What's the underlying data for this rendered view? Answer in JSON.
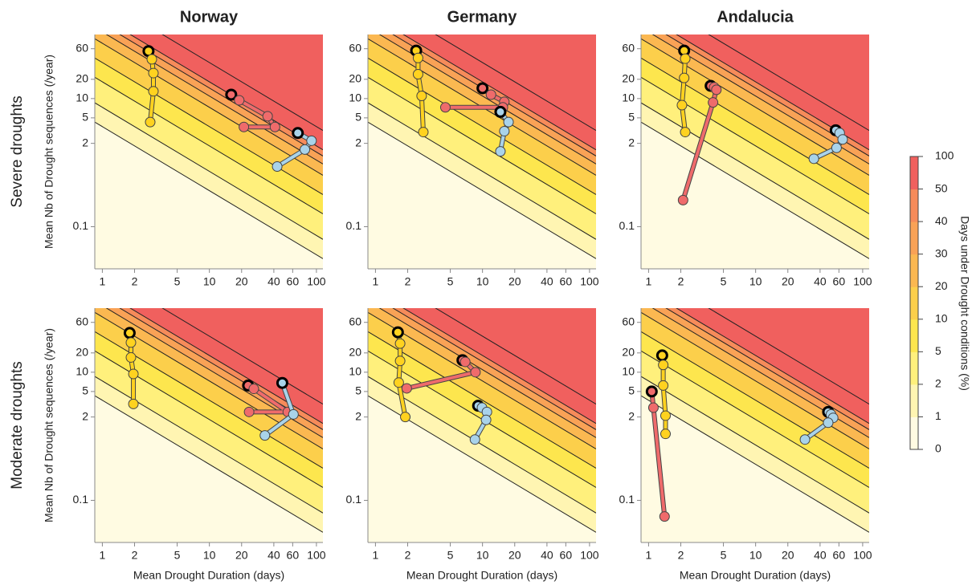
{
  "column_titles": [
    "Norway",
    "Germany",
    "Andalucia"
  ],
  "row_labels": [
    "Severe droughts",
    "Moderate droughts"
  ],
  "x_label": "Mean Drought Duration (days)",
  "y_label": "Mean Nb of Drought sequences (/year)",
  "style": {
    "marker_edge": "#444444",
    "first_marker_edge": "#000000",
    "contour_color": "#222222",
    "axis_color": "#888888"
  },
  "colorbar": {
    "label": "Days under Drought conditions (%)",
    "ticks": [
      0,
      1,
      2,
      5,
      10,
      20,
      30,
      40,
      50,
      100
    ],
    "colors": [
      "#fffbe2",
      "#fff5b2",
      "#fff07c",
      "#fde64e",
      "#fccf4b",
      "#fbb851",
      "#f9a256",
      "#f68b5a",
      "#f0605e"
    ]
  },
  "chart_data": [
    {
      "type": "line",
      "log_x": true,
      "log_y": true,
      "xlim": [
        0.85,
        115
      ],
      "ylim": [
        0.022,
        100
      ],
      "xticks": [
        1,
        2,
        5,
        10,
        20,
        40,
        60,
        100
      ],
      "yticks": [
        0.1,
        2,
        5,
        10,
        20,
        60
      ],
      "series": [
        {
          "color": "#ffd21f",
          "x": [
            2.7,
            2.9,
            3.0,
            3.0,
            2.8
          ],
          "values": [
            55,
            41,
            25,
            13,
            4.3
          ]
        },
        {
          "color": "#ef6b6b",
          "x": [
            16,
            19,
            35,
            41,
            21
          ],
          "values": [
            11.5,
            9.4,
            5.3,
            3.6,
            3.6
          ]
        },
        {
          "color": "#a9d3ea",
          "x": [
            67,
            90,
            78,
            43
          ],
          "values": [
            2.9,
            2.2,
            1.6,
            0.87
          ]
        }
      ]
    },
    {
      "type": "line",
      "log_x": true,
      "log_y": true,
      "xlim": [
        0.85,
        115
      ],
      "ylim": [
        0.022,
        100
      ],
      "xticks": [
        1,
        2,
        5,
        10,
        20,
        40,
        60,
        100
      ],
      "yticks": [
        0.1,
        2,
        5,
        10,
        20,
        60
      ],
      "series": [
        {
          "color": "#ffd21f",
          "x": [
            2.4,
            2.5,
            2.5,
            2.7,
            2.8
          ],
          "values": [
            56,
            43,
            24,
            11,
            3.0
          ]
        },
        {
          "color": "#ef6b6b",
          "x": [
            10,
            12,
            16,
            15.5,
            4.5
          ],
          "values": [
            14.5,
            11.5,
            8.9,
            7.3,
            7.3
          ]
        },
        {
          "color": "#a9d3ea",
          "x": [
            14.7,
            17.5,
            16,
            14.7
          ],
          "values": [
            6.2,
            4.3,
            3.1,
            1.5
          ]
        }
      ]
    },
    {
      "type": "line",
      "log_x": true,
      "log_y": true,
      "xlim": [
        0.85,
        115
      ],
      "ylim": [
        0.022,
        100
      ],
      "xticks": [
        1,
        2,
        5,
        10,
        20,
        40,
        60,
        100
      ],
      "yticks": [
        0.1,
        2,
        5,
        10,
        20,
        60
      ],
      "series": [
        {
          "color": "#ffd21f",
          "x": [
            2.15,
            2.2,
            2.15,
            2.05,
            2.2
          ],
          "values": [
            56,
            42,
            21,
            7.9,
            3.0
          ]
        },
        {
          "color": "#ef6b6b",
          "x": [
            3.8,
            4.1,
            4.3,
            4.0,
            2.1
          ],
          "values": [
            15.8,
            15,
            13.7,
            8.7,
            0.26
          ]
        },
        {
          "color": "#a9d3ea",
          "x": [
            56,
            61,
            65,
            57,
            35
          ],
          "values": [
            3.2,
            2.9,
            2.3,
            1.7,
            1.15
          ]
        }
      ]
    },
    {
      "type": "line",
      "log_x": true,
      "log_y": true,
      "xlim": [
        0.85,
        115
      ],
      "ylim": [
        0.022,
        100
      ],
      "xticks": [
        1,
        2,
        5,
        10,
        20,
        40,
        60,
        100
      ],
      "yticks": [
        0.1,
        2,
        5,
        10,
        20,
        60
      ],
      "series": [
        {
          "color": "#ffd21f",
          "x": [
            1.8,
            1.85,
            1.85,
            1.95,
            1.95
          ],
          "values": [
            41,
            29,
            17,
            9.4,
            3.2
          ]
        },
        {
          "color": "#ef6b6b",
          "x": [
            23,
            26,
            54,
            23.5
          ],
          "values": [
            6.2,
            5.5,
            2.4,
            2.4
          ]
        },
        {
          "color": "#a9d3ea",
          "x": [
            48,
            61,
            33
          ],
          "values": [
            6.8,
            2.2,
            1.03
          ]
        }
      ]
    },
    {
      "type": "line",
      "log_x": true,
      "log_y": true,
      "xlim": [
        0.85,
        115
      ],
      "ylim": [
        0.022,
        100
      ],
      "xticks": [
        1,
        2,
        5,
        10,
        20,
        40,
        60,
        100
      ],
      "yticks": [
        0.1,
        2,
        5,
        10,
        20,
        60
      ],
      "series": [
        {
          "color": "#ffd21f",
          "x": [
            1.62,
            1.7,
            1.7,
            1.65,
            1.9
          ],
          "values": [
            42,
            28,
            15,
            6.9,
            2.0
          ]
        },
        {
          "color": "#ef6b6b",
          "x": [
            6.5,
            6.9,
            8.6,
            1.96
          ],
          "values": [
            15.4,
            14.5,
            10,
            5.6
          ]
        },
        {
          "color": "#a9d3ea",
          "x": [
            9.1,
            9.9,
            11,
            10.8,
            8.5
          ],
          "values": [
            3.0,
            2.8,
            2.4,
            1.8,
            0.89
          ]
        }
      ]
    },
    {
      "type": "line",
      "log_x": true,
      "log_y": true,
      "xlim": [
        0.85,
        115
      ],
      "ylim": [
        0.022,
        100
      ],
      "xticks": [
        1,
        2,
        5,
        10,
        20,
        40,
        60,
        100
      ],
      "yticks": [
        0.1,
        2,
        5,
        10,
        20,
        60
      ],
      "series": [
        {
          "color": "#ffd21f",
          "x": [
            1.34,
            1.37,
            1.37,
            1.44,
            1.44
          ],
          "values": [
            18.3,
            13,
            6.2,
            2.1,
            1.09
          ]
        },
        {
          "color": "#ef6b6b",
          "x": [
            1.07,
            1.11,
            1.41
          ],
          "values": [
            5.0,
            2.8,
            0.056
          ]
        },
        {
          "color": "#a9d3ea",
          "x": [
            47.6,
            50.6,
            53,
            47.6,
            28.9
          ],
          "values": [
            2.4,
            2.2,
            1.94,
            1.63,
            0.89
          ]
        }
      ]
    }
  ]
}
